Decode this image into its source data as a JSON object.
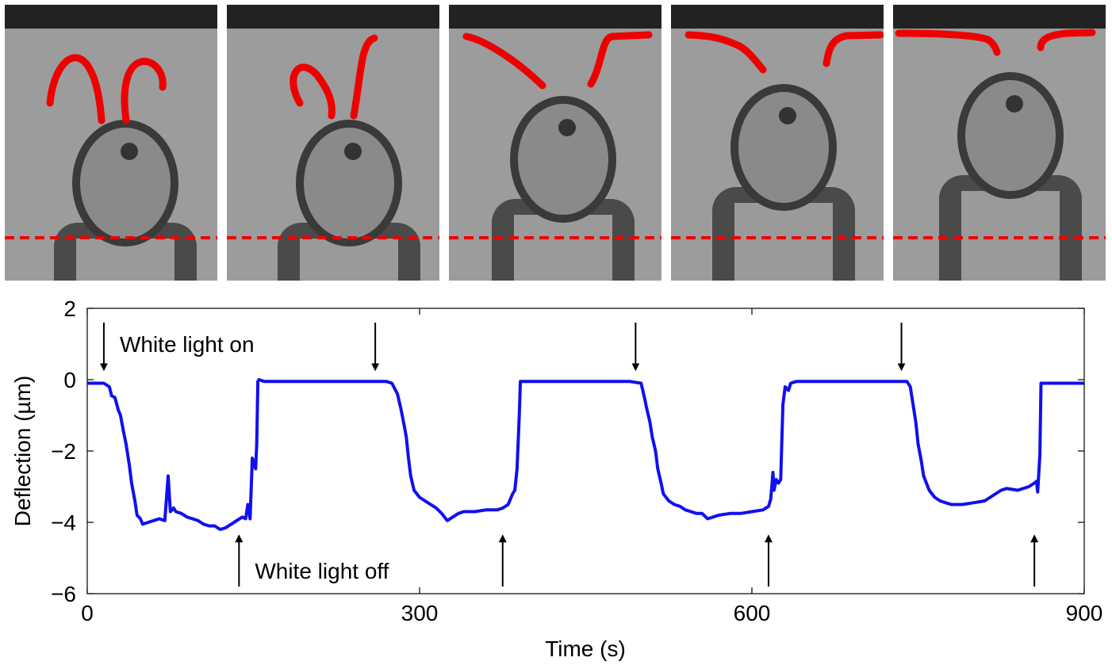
{
  "panels": [
    {
      "id": 1
    },
    {
      "id": 2
    },
    {
      "id": 3
    },
    {
      "id": 4
    },
    {
      "id": 5
    }
  ],
  "colors": {
    "trace": "#1010ee",
    "overlay": "#ee0000",
    "arrow": "#000000",
    "axis": "#000000"
  },
  "chart_data": {
    "type": "line",
    "title": "",
    "xlabel": "Time (s)",
    "ylabel": "Deflection (µm)",
    "xlim": [
      0,
      900
    ],
    "ylim": [
      -6,
      2
    ],
    "xticks": [
      0,
      300,
      600,
      900
    ],
    "yticks": [
      2,
      0,
      -2,
      -4,
      -6
    ],
    "xtick_labels": [
      "0",
      "300",
      "600",
      "900"
    ],
    "ytick_labels": [
      "2",
      "0",
      "−2",
      "−4",
      "−6"
    ],
    "grid": false,
    "series": [
      {
        "x": [
          0,
          15,
          20,
          22,
          25,
          28,
          30,
          33,
          35,
          38,
          40,
          43,
          45,
          48,
          50,
          55,
          60,
          65,
          70,
          73,
          75,
          78,
          80,
          85,
          90,
          95,
          100,
          105,
          110,
          115,
          120,
          125,
          130,
          135,
          140,
          143,
          145,
          147,
          149,
          150,
          152,
          153,
          154,
          155,
          160,
          200,
          250,
          270,
          275,
          280,
          283,
          285,
          288,
          290,
          292,
          295,
          300,
          305,
          310,
          315,
          320,
          325,
          330,
          335,
          340,
          350,
          360,
          370,
          375,
          380,
          384,
          386,
          388,
          390,
          391,
          395,
          450,
          490,
          500,
          503,
          505,
          508,
          510,
          513,
          515,
          518,
          520,
          525,
          530,
          535,
          540,
          545,
          550,
          555,
          560,
          565,
          570,
          580,
          590,
          600,
          610,
          615,
          617,
          618,
          619,
          620,
          622,
          624,
          626,
          628,
          630,
          633,
          635,
          640,
          700,
          730,
          740,
          743,
          745,
          748,
          750,
          753,
          755,
          760,
          765,
          770,
          775,
          780,
          790,
          800,
          810,
          820,
          825,
          830,
          840,
          850,
          855,
          857,
          858,
          860,
          861,
          862,
          865,
          900
        ],
        "y": [
          -0.1,
          -0.1,
          -0.2,
          -0.45,
          -0.5,
          -0.85,
          -1.0,
          -1.5,
          -1.8,
          -2.4,
          -2.9,
          -3.4,
          -3.8,
          -3.9,
          -4.05,
          -4.0,
          -3.95,
          -3.9,
          -3.95,
          -2.7,
          -3.7,
          -3.6,
          -3.7,
          -3.75,
          -3.85,
          -3.9,
          -3.95,
          -4.05,
          -4.1,
          -4.1,
          -4.2,
          -4.15,
          -4.05,
          -3.95,
          -3.85,
          -3.9,
          -3.5,
          -3.9,
          -2.2,
          -2.3,
          -2.5,
          -1.8,
          -0.05,
          0,
          -0.05,
          -0.05,
          -0.05,
          -0.05,
          -0.1,
          -0.4,
          -0.8,
          -1.1,
          -1.6,
          -2.2,
          -2.7,
          -3.1,
          -3.3,
          -3.4,
          -3.5,
          -3.6,
          -3.75,
          -3.95,
          -3.85,
          -3.75,
          -3.7,
          -3.7,
          -3.65,
          -3.65,
          -3.6,
          -3.5,
          -3.2,
          -3.1,
          -2.5,
          -1.0,
          -0.05,
          -0.05,
          -0.05,
          -0.05,
          -0.1,
          -0.5,
          -0.8,
          -1.2,
          -1.6,
          -2.0,
          -2.5,
          -2.9,
          -3.2,
          -3.4,
          -3.5,
          -3.55,
          -3.65,
          -3.7,
          -3.75,
          -3.75,
          -3.9,
          -3.85,
          -3.8,
          -3.75,
          -3.75,
          -3.7,
          -3.65,
          -3.55,
          -3.35,
          -3.0,
          -2.6,
          -3.1,
          -2.8,
          -2.9,
          -2.8,
          -0.7,
          -0.2,
          -0.3,
          -0.1,
          -0.05,
          -0.05,
          -0.05,
          -0.05,
          -0.2,
          -0.6,
          -1.2,
          -1.8,
          -2.3,
          -2.7,
          -3.1,
          -3.3,
          -3.4,
          -3.45,
          -3.5,
          -3.5,
          -3.45,
          -3.4,
          -3.2,
          -3.1,
          -3.05,
          -3.1,
          -3.0,
          -2.9,
          -2.85,
          -3.15,
          -2.1,
          -0.1,
          -0.1,
          -0.1,
          -0.1
        ]
      }
    ],
    "annotations": [
      {
        "text": "White light on",
        "x": 15,
        "direction": "down"
      },
      {
        "text": "",
        "x": 260,
        "direction": "down"
      },
      {
        "text": "",
        "x": 495,
        "direction": "down"
      },
      {
        "text": "",
        "x": 735,
        "direction": "down"
      },
      {
        "text": "White light off",
        "x": 137,
        "direction": "up"
      },
      {
        "text": "",
        "x": 375,
        "direction": "up"
      },
      {
        "text": "",
        "x": 615,
        "direction": "up"
      },
      {
        "text": "",
        "x": 855,
        "direction": "up"
      }
    ]
  }
}
